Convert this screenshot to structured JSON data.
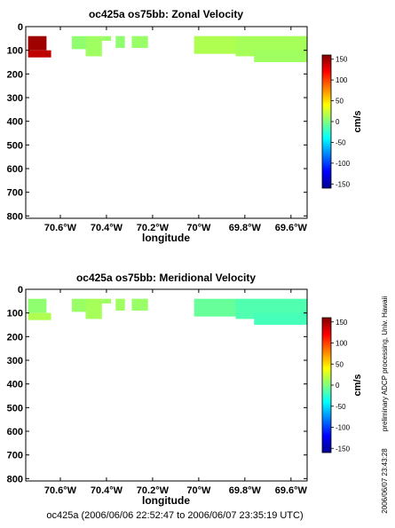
{
  "chart_data": [
    {
      "type": "heatmap",
      "title": "oc425a os75bb: Zonal Velocity",
      "xlabel": "longitude",
      "ylabel": "",
      "x_ticks": [
        -70.6,
        -70.4,
        -70.2,
        -70.0,
        -69.8,
        -69.6
      ],
      "x_tick_labels": [
        "70.6°W",
        "70.4°W",
        "70.2°W",
        "70°W",
        "69.8°W",
        "69.6°W"
      ],
      "y_ticks": [
        0,
        100,
        200,
        300,
        400,
        500,
        600,
        700,
        800
      ],
      "xlim": [
        -70.75,
        -69.53
      ],
      "ylim": [
        810,
        0
      ],
      "y_reversed": true,
      "colorbar": {
        "label": "cm/s",
        "range": [
          -160,
          160
        ],
        "ticks": [
          150,
          100,
          50,
          0,
          -50,
          -100,
          -150
        ]
      },
      "patches": [
        {
          "x": [
            -70.74,
            -70.66
          ],
          "depth": [
            40,
            100
          ],
          "value": 150
        },
        {
          "x": [
            -70.74,
            -70.64
          ],
          "depth": [
            100,
            130
          ],
          "value": 140
        },
        {
          "x": [
            -70.55,
            -70.48
          ],
          "depth": [
            40,
            95
          ],
          "value": 5
        },
        {
          "x": [
            -70.49,
            -70.42
          ],
          "depth": [
            40,
            125
          ],
          "value": 10
        },
        {
          "x": [
            -70.42,
            -70.38
          ],
          "depth": [
            40,
            60
          ],
          "value": 8
        },
        {
          "x": [
            -70.36,
            -70.32
          ],
          "depth": [
            40,
            90
          ],
          "value": 5
        },
        {
          "x": [
            -70.29,
            -70.22
          ],
          "depth": [
            40,
            90
          ],
          "value": 8
        },
        {
          "x": [
            -70.02,
            -69.84
          ],
          "depth": [
            40,
            115
          ],
          "value": 15
        },
        {
          "x": [
            -69.84,
            -69.53
          ],
          "depth": [
            40,
            125
          ],
          "value": 12
        },
        {
          "x": [
            -69.76,
            -69.53
          ],
          "depth": [
            100,
            150
          ],
          "value": 10
        }
      ]
    },
    {
      "type": "heatmap",
      "title": "oc425a os75bb: Meridional Velocity",
      "xlabel": "longitude",
      "ylabel": "",
      "x_ticks": [
        -70.6,
        -70.4,
        -70.2,
        -70.0,
        -69.8,
        -69.6
      ],
      "x_tick_labels": [
        "70.6°W",
        "70.4°W",
        "70.2°W",
        "70°W",
        "69.8°W",
        "69.6°W"
      ],
      "y_ticks": [
        0,
        100,
        200,
        300,
        400,
        500,
        600,
        700,
        800
      ],
      "xlim": [
        -70.75,
        -69.53
      ],
      "ylim": [
        810,
        0
      ],
      "y_reversed": true,
      "colorbar": {
        "label": "cm/s",
        "range": [
          -160,
          160
        ],
        "ticks": [
          150,
          100,
          50,
          0,
          -50,
          -100,
          -150
        ]
      },
      "patches": [
        {
          "x": [
            -70.74,
            -70.66
          ],
          "depth": [
            40,
            100
          ],
          "value": 5
        },
        {
          "x": [
            -70.74,
            -70.64
          ],
          "depth": [
            100,
            130
          ],
          "value": 15
        },
        {
          "x": [
            -70.55,
            -70.48
          ],
          "depth": [
            40,
            95
          ],
          "value": 8
        },
        {
          "x": [
            -70.49,
            -70.42
          ],
          "depth": [
            40,
            125
          ],
          "value": 12
        },
        {
          "x": [
            -70.42,
            -70.38
          ],
          "depth": [
            40,
            60
          ],
          "value": 10
        },
        {
          "x": [
            -70.36,
            -70.32
          ],
          "depth": [
            40,
            90
          ],
          "value": 10
        },
        {
          "x": [
            -70.29,
            -70.22
          ],
          "depth": [
            40,
            90
          ],
          "value": 8
        },
        {
          "x": [
            -70.02,
            -69.84
          ],
          "depth": [
            40,
            115
          ],
          "value": -8
        },
        {
          "x": [
            -69.84,
            -69.53
          ],
          "depth": [
            40,
            125
          ],
          "value": -15
        },
        {
          "x": [
            -69.76,
            -69.53
          ],
          "depth": [
            100,
            150
          ],
          "value": -18
        }
      ]
    }
  ],
  "side_text": {
    "processing": "preliminary ADCP processing,   Univ. Hawaii",
    "timestamp": "2006/06/07 23:43:28"
  },
  "footer": "oc425a (2006/06/06 22:52:47 to 2006/06/07 23:35:19 UTC)"
}
